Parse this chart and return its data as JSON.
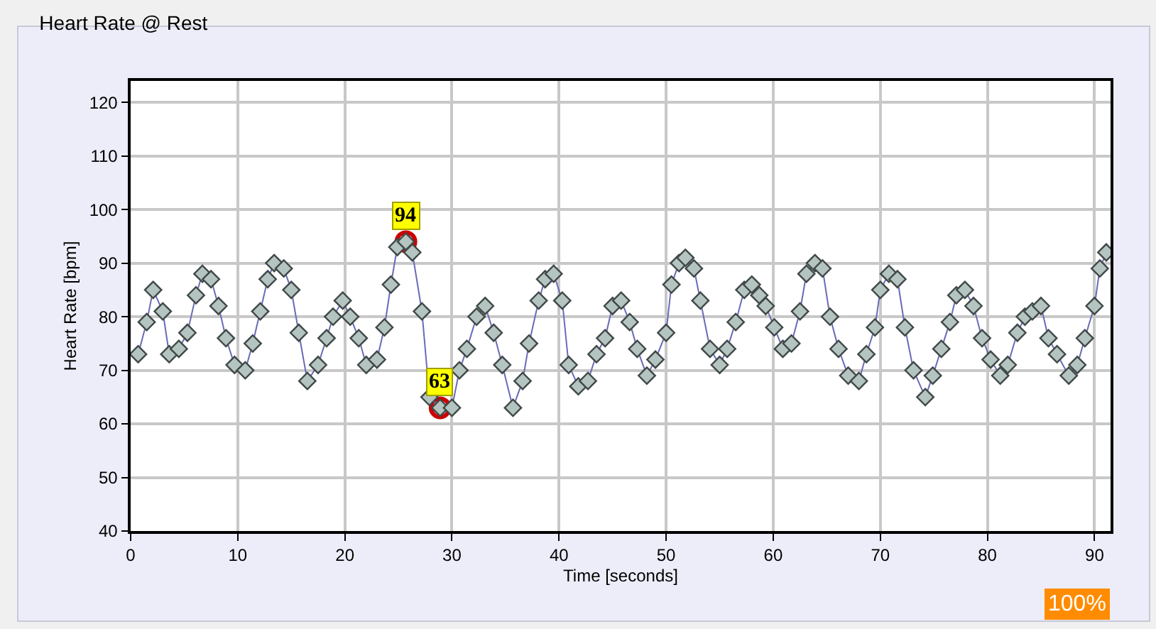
{
  "chart_data": {
    "type": "line",
    "title": "Heart Rate @ Rest",
    "xlabel": "Time [seconds]",
    "ylabel": "Heart Rate [bpm]",
    "series": [
      {
        "color": "#6a6ab8",
        "marker": "diamond",
        "x": [
          0.7,
          1.5,
          2.1,
          3.0,
          3.6,
          4.5,
          5.3,
          6.1,
          6.7,
          7.5,
          8.2,
          8.9,
          9.7,
          10.7,
          11.4,
          12.1,
          12.8,
          13.4,
          14.3,
          15.0,
          15.7,
          16.5,
          17.5,
          18.3,
          18.9,
          19.8,
          20.5,
          21.3,
          22.0,
          23.0,
          23.7,
          24.3,
          24.9,
          25.7,
          26.3,
          27.2,
          27.9,
          28.9,
          30.0,
          30.7,
          31.4,
          32.3,
          33.1,
          33.9,
          34.7,
          35.7,
          36.6,
          37.2,
          38.1,
          38.7,
          39.5,
          40.3,
          40.9,
          41.8,
          42.7,
          43.5,
          44.3,
          45.0,
          45.8,
          46.6,
          47.3,
          48.2,
          49.0,
          50.0,
          50.5,
          51.2,
          51.8,
          52.6,
          53.2,
          54.1,
          55.0,
          55.7,
          56.5,
          57.3,
          58.0,
          58.7,
          59.3,
          60.1,
          60.9,
          61.7,
          62.5,
          63.1,
          63.9,
          64.6,
          65.3,
          66.1,
          67.0,
          68.0,
          68.7,
          69.5,
          70.0,
          70.8,
          71.6,
          72.3,
          73.1,
          74.2,
          74.9,
          75.7,
          76.5,
          77.1,
          77.9,
          78.7,
          79.5,
          80.3,
          81.2,
          81.9,
          82.8,
          83.5,
          84.2,
          85.0,
          85.7,
          86.5,
          87.6,
          88.4,
          89.1,
          90.0,
          90.5,
          91.1
        ],
        "values": [
          73,
          79,
          85,
          81,
          73,
          74,
          77,
          84,
          88,
          87,
          82,
          76,
          71,
          70,
          75,
          81,
          87,
          90,
          89,
          85,
          77,
          68,
          71,
          76,
          80,
          83,
          80,
          76,
          71,
          72,
          78,
          86,
          93,
          94,
          92,
          81,
          65,
          63,
          63,
          70,
          74,
          80,
          82,
          77,
          71,
          63,
          68,
          75,
          83,
          87,
          88,
          83,
          71,
          67,
          68,
          73,
          76,
          82,
          83,
          79,
          74,
          69,
          72,
          77,
          86,
          90,
          91,
          89,
          83,
          74,
          71,
          74,
          79,
          85,
          86,
          84,
          82,
          78,
          74,
          75,
          81,
          88,
          90,
          89,
          80,
          74,
          69,
          68,
          73,
          78,
          85,
          88,
          87,
          78,
          70,
          65,
          69,
          74,
          79,
          84,
          85,
          82,
          76,
          72,
          69,
          71,
          77,
          80,
          81,
          82,
          76,
          73,
          69,
          71,
          76,
          82,
          89,
          92
        ]
      },
      {
        "type": "scatter",
        "color": "#cc0000",
        "marker": "circle",
        "x": [
          25.7,
          28.9
        ],
        "values": [
          94,
          63
        ]
      }
    ],
    "annotations": [
      {
        "text": "94",
        "x": 25.7,
        "y": 94
      },
      {
        "text": "63",
        "x": 28.9,
        "y": 63
      },
      "100%"
    ],
    "xlim": [
      0,
      91.5
    ],
    "xticks": [
      0,
      10,
      20,
      30,
      40,
      50,
      60,
      70,
      80,
      90
    ],
    "ylim": [
      40,
      124
    ],
    "yticks": [
      40,
      50,
      60,
      70,
      80,
      90,
      100,
      110,
      120
    ],
    "grid": true
  }
}
